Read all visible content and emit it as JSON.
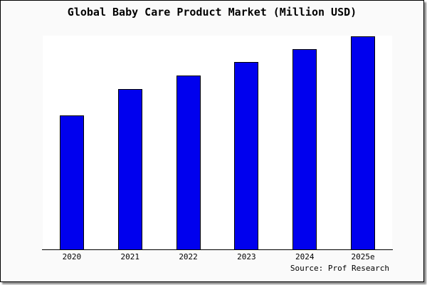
{
  "title": "Global Baby Care Product Market (Million USD)",
  "source": "Source: Prof Research",
  "colors": {
    "bar_fill": "#0000ee",
    "bar_border": "#000000",
    "frame_background": "#fafafa",
    "plot_background": "#ffffff",
    "axis": "#000000",
    "text": "#000000"
  },
  "chart_data": {
    "type": "bar",
    "title": "Global Baby Care Product Market (Million USD)",
    "categories": [
      "2020",
      "2021",
      "2022",
      "2023",
      "2024",
      "2025e"
    ],
    "values_percent_of_max": [
      62.9,
      75.3,
      81.6,
      88.0,
      94.0,
      100.0
    ],
    "xlabel": "",
    "ylabel": "",
    "y_axis_visible": false,
    "gridlines": false,
    "legend": false,
    "annotation": "Source: Prof Research",
    "note": "No numeric y-axis shown in image; values are measured bar heights as percent of tallest bar (2025e)."
  }
}
